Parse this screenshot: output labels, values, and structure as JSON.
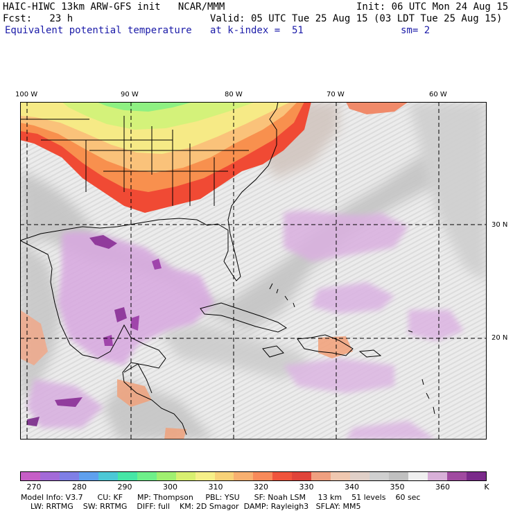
{
  "header": {
    "line1_left": "HAIC-HIWC 13km ARW-GFS init   NCAR/MMM",
    "line1_right": "Init: 06 UTC Mon 24 Aug 15",
    "line2_left": "Fcst:   23 h",
    "line2_right": "Valid: 05 UTC Tue 25 Aug 15 (03 LDT Tue 25 Aug 15)",
    "field_name": "Equivalent potential temperature",
    "level": "at k-index =  51",
    "smoothing": "sm= 2"
  },
  "axes": {
    "lon_labels": [
      "100 W",
      "90 W",
      "80 W",
      "70 W",
      "60 W"
    ],
    "lat_labels": [
      "30 N",
      "20 N"
    ]
  },
  "colorbar": {
    "unit": "K",
    "tick_labels": [
      "270",
      "280",
      "290",
      "300",
      "310",
      "320",
      "330",
      "340",
      "350",
      "360"
    ],
    "colors": [
      "#c65ec6",
      "#a36ad8",
      "#7f7fe6",
      "#5fa0ee",
      "#4cc8d6",
      "#46e6a6",
      "#6ef08a",
      "#a0f070",
      "#d8f070",
      "#f6f088",
      "#f8d278",
      "#f8b070",
      "#f88a5a",
      "#f0543c",
      "#e0443a",
      "#f0a080",
      "#f0c8b0",
      "#e0d0c8",
      "#d0d0d0",
      "#c0c0c0",
      "#f0f0f0",
      "#d8b0d8",
      "#a04aa0",
      "#7a2a8a"
    ]
  },
  "footer": {
    "line1": "Model Info: V3.7      CU: KF      MP: Thompson     PBL: YSU      SF: Noah LSM     13 km    51 levels    60 sec",
    "line2": "    LW: RRTMG    SW: RRTMG    DIFF: full    KM: 2D Smagor  DAMP: Rayleigh3   SFLAY: MM5"
  }
}
